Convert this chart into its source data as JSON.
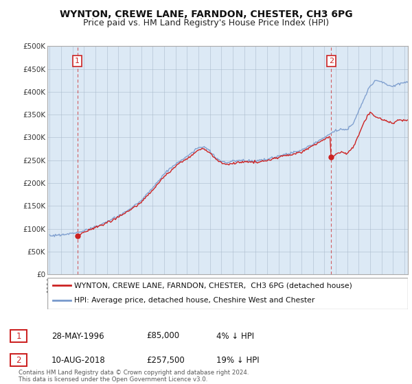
{
  "title": "WYNTON, CREWE LANE, FARNDON, CHESTER, CH3 6PG",
  "subtitle": "Price paid vs. HM Land Registry's House Price Index (HPI)",
  "ylabel_ticks": [
    "£0",
    "£50K",
    "£100K",
    "£150K",
    "£200K",
    "£250K",
    "£300K",
    "£350K",
    "£400K",
    "£450K",
    "£500K"
  ],
  "ytick_vals": [
    0,
    50000,
    100000,
    150000,
    200000,
    250000,
    300000,
    350000,
    400000,
    450000,
    500000
  ],
  "ylim": [
    0,
    500000
  ],
  "xlim_start": 1993.8,
  "xlim_end": 2025.3,
  "xticks": [
    1994,
    1995,
    1996,
    1997,
    1998,
    1999,
    2000,
    2001,
    2002,
    2003,
    2004,
    2005,
    2006,
    2007,
    2008,
    2009,
    2010,
    2011,
    2012,
    2013,
    2014,
    2015,
    2016,
    2017,
    2018,
    2019,
    2020,
    2021,
    2022,
    2023,
    2024,
    2025
  ],
  "hpi_color": "#7799cc",
  "price_color": "#cc2222",
  "vline_color": "#cc2222",
  "marker_color": "#cc2222",
  "point1_x": 1996.42,
  "point1_y": 85000,
  "point2_x": 2018.61,
  "point2_y": 257500,
  "legend_label1": "WYNTON, CREWE LANE, FARNDON, CHESTER,  CH3 6PG (detached house)",
  "legend_label2": "HPI: Average price, detached house, Cheshire West and Chester",
  "footer1": "Contains HM Land Registry data © Crown copyright and database right 2024.",
  "footer2": "This data is licensed under the Open Government Licence v3.0.",
  "table_row1": [
    "1",
    "28-MAY-1996",
    "£85,000",
    "4% ↓ HPI"
  ],
  "table_row2": [
    "2",
    "10-AUG-2018",
    "£257,500",
    "19% ↓ HPI"
  ],
  "bg_color": "#ffffff",
  "plot_bg_color": "#dce9f5",
  "grid_color": "#aabbcc",
  "title_fontsize": 10,
  "subtitle_fontsize": 9
}
